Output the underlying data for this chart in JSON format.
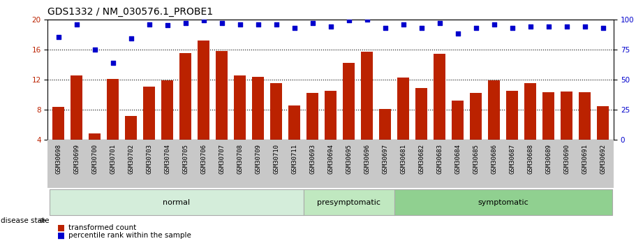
{
  "title": "GDS1332 / NM_030576.1_PROBE1",
  "categories": [
    "GSM30698",
    "GSM30699",
    "GSM30700",
    "GSM30701",
    "GSM30702",
    "GSM30703",
    "GSM30704",
    "GSM30705",
    "GSM30706",
    "GSM30707",
    "GSM30708",
    "GSM30709",
    "GSM30710",
    "GSM30711",
    "GSM30693",
    "GSM30694",
    "GSM30695",
    "GSM30696",
    "GSM30697",
    "GSM30681",
    "GSM30682",
    "GSM30683",
    "GSM30684",
    "GSM30685",
    "GSM30686",
    "GSM30687",
    "GSM30688",
    "GSM30689",
    "GSM30690",
    "GSM30691",
    "GSM30692"
  ],
  "bar_values": [
    8.4,
    12.5,
    4.8,
    12.1,
    7.2,
    11.1,
    11.9,
    15.5,
    17.2,
    15.8,
    12.5,
    12.4,
    11.5,
    8.6,
    10.2,
    10.5,
    14.2,
    15.7,
    8.1,
    12.3,
    10.9,
    15.4,
    9.2,
    10.2,
    11.9,
    10.5,
    11.5,
    10.3,
    10.4,
    10.3,
    8.5
  ],
  "dot_values": [
    85,
    96,
    75,
    64,
    84,
    96,
    95,
    97,
    99,
    97,
    96,
    96,
    96,
    93,
    97,
    94,
    99,
    100,
    93,
    96,
    93,
    97,
    88,
    93,
    96,
    93,
    94,
    94,
    94,
    94,
    93
  ],
  "groups": [
    {
      "label": "normal",
      "start": 0,
      "end": 13,
      "color": "#d4edda"
    },
    {
      "label": "presymptomatic",
      "start": 14,
      "end": 18,
      "color": "#c0e8c0"
    },
    {
      "label": "symptomatic",
      "start": 19,
      "end": 30,
      "color": "#90d090"
    }
  ],
  "bar_color": "#bb2200",
  "dot_color": "#0000cc",
  "ylim_left": [
    4,
    20
  ],
  "ylim_right": [
    0,
    100
  ],
  "yticks_left": [
    4,
    8,
    12,
    16,
    20
  ],
  "yticks_right": [
    0,
    25,
    50,
    75,
    100
  ],
  "grid_values": [
    8,
    12,
    16
  ],
  "title_fontsize": 10,
  "tick_fontsize": 6.5,
  "label_fontsize": 8,
  "group_label_fontsize": 8
}
